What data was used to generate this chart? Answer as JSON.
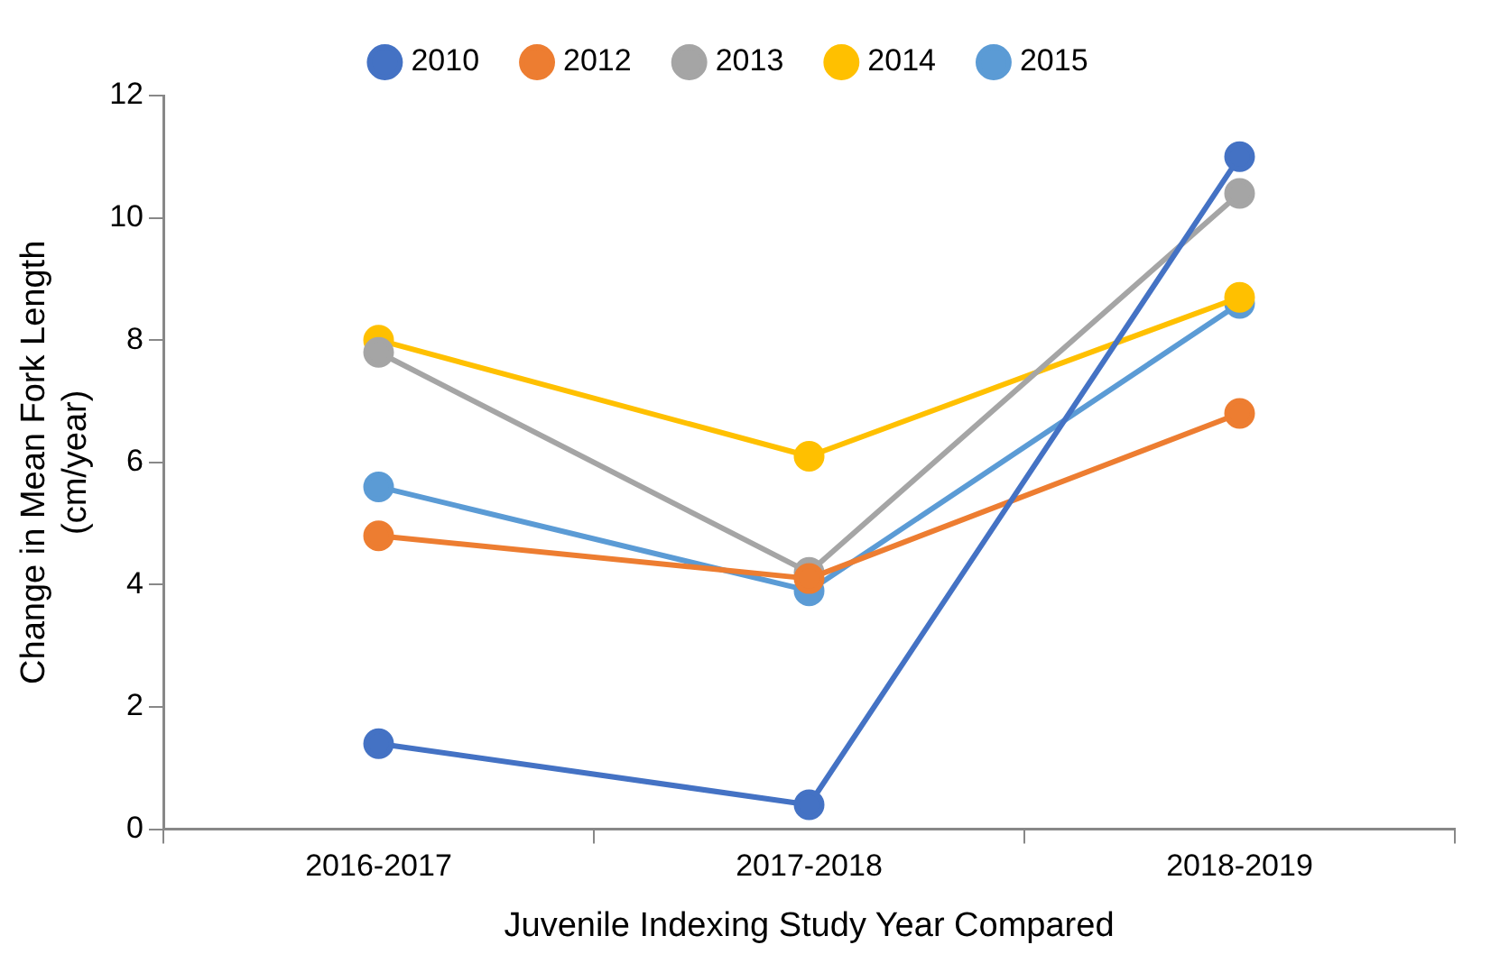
{
  "chart_data": {
    "type": "line",
    "categories": [
      "2016-2017",
      "2017-2018",
      "2018-2019"
    ],
    "series": [
      {
        "name": "2010",
        "color": "#4472c4",
        "values": [
          1.4,
          0.4,
          11.0
        ]
      },
      {
        "name": "2012",
        "color": "#ed7d31",
        "values": [
          4.8,
          4.1,
          6.8
        ]
      },
      {
        "name": "2013",
        "color": "#a5a5a5",
        "values": [
          7.8,
          4.2,
          10.4
        ]
      },
      {
        "name": "2014",
        "color": "#ffc000",
        "values": [
          8.0,
          6.1,
          8.7
        ]
      },
      {
        "name": "2015",
        "color": "#5b9bd5",
        "values": [
          5.6,
          3.9,
          8.6
        ]
      }
    ],
    "xlabel": "Juvenile Indexing Study Year Compared",
    "ylabel": "Change in Mean Fork Length\n(cm/year)",
    "ylim": [
      0,
      12
    ],
    "yticks": [
      0,
      2,
      4,
      6,
      8,
      10,
      12
    ],
    "grid": false,
    "legend": "top",
    "marker": "circle",
    "line_style": "solid"
  }
}
